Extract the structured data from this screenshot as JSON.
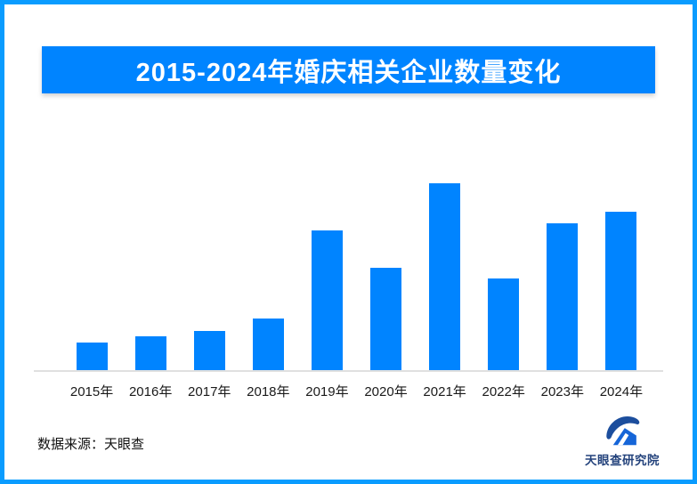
{
  "banner": {
    "title": "2015-2024年婚庆相关企业数量变化"
  },
  "chart_data": {
    "type": "bar",
    "title": "2015-2024年婚庆相关企业数量变化",
    "categories": [
      "2015年",
      "2016年",
      "2017年",
      "2018年",
      "2019年",
      "2020年",
      "2021年",
      "2022年",
      "2023年",
      "2024年"
    ],
    "values": [
      15,
      18.5,
      21.5,
      28,
      75,
      55,
      100,
      49.5,
      78.5,
      85
    ],
    "value_scale_note": "relative heights estimated from pixels; no y-axis tick labels shown; 2021 peak normalized to 100",
    "xlabel": "",
    "ylabel": "",
    "ylim": [
      0,
      100
    ],
    "grid": false,
    "legend": false,
    "bar_color": "#0084ff"
  },
  "footer": {
    "source": "数据来源：天眼查",
    "logo_text": "天眼查研究院"
  },
  "colors": {
    "accent_blue": "#0084ff",
    "frame_blue": "#0a9cff",
    "axis_gray": "#e0e0e0",
    "logo_navy": "#24437c"
  }
}
